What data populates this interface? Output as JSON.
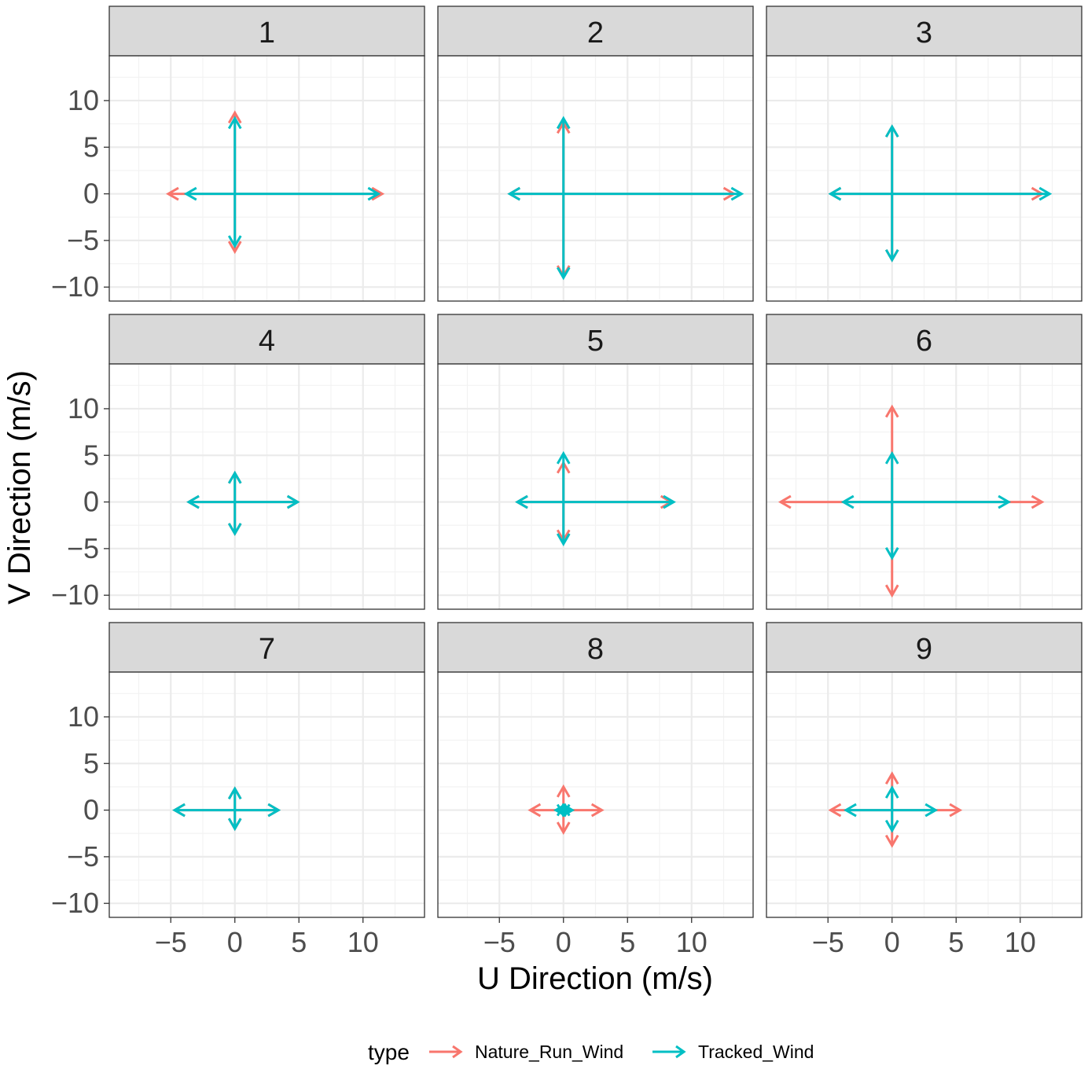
{
  "chart_data": {
    "type": "vector",
    "xlabel": "U Direction (m/s)",
    "ylabel": "V Direction (m/s)",
    "xlim": [
      -9.8,
      14.8
    ],
    "ylim": [
      -11.5,
      14.8
    ],
    "x_ticks": [
      -5,
      0,
      5,
      10
    ],
    "x_tick_labels": [
      "−5",
      "0",
      "5",
      "10"
    ],
    "y_ticks": [
      10,
      5,
      0,
      -5,
      -10
    ],
    "y_tick_labels": [
      "10",
      "5",
      "0",
      "−5",
      "−10"
    ],
    "grid": true,
    "legend": {
      "title": "type",
      "placement": "bottom",
      "entries": [
        {
          "name": "Nature_Run_Wind",
          "color": "#F8766D"
        },
        {
          "name": "Tracked_Wind",
          "color": "#00BFC4"
        }
      ]
    },
    "facets": [
      {
        "label": "1",
        "Nature_Run_Wind": {
          "u_pos": 11.5,
          "u_neg": -5.2,
          "v_pos": 8.7,
          "v_neg": -6.2
        },
        "Tracked_Wind": {
          "u_pos": 11.2,
          "u_neg": -3.8,
          "v_pos": 8.1,
          "v_neg": -5.6
        }
      },
      {
        "label": "2",
        "Nature_Run_Wind": {
          "u_pos": 13.3,
          "u_neg": -4.2,
          "v_pos": 7.6,
          "v_neg": -8.8
        },
        "Tracked_Wind": {
          "u_pos": 13.9,
          "u_neg": -4.2,
          "v_pos": 8.1,
          "v_neg": -9.0
        }
      },
      {
        "label": "3",
        "Nature_Run_Wind": {
          "u_pos": 11.7,
          "u_neg": -4.8,
          "v_pos": 7.2,
          "v_neg": -7.1
        },
        "Tracked_Wind": {
          "u_pos": 12.3,
          "u_neg": -4.8,
          "v_pos": 7.2,
          "v_neg": -7.1
        }
      },
      {
        "label": "4",
        "Nature_Run_Wind": {
          "u_pos": 4.9,
          "u_neg": -3.6,
          "v_pos": 3.1,
          "v_neg": -3.4
        },
        "Tracked_Wind": {
          "u_pos": 4.9,
          "u_neg": -3.6,
          "v_pos": 3.1,
          "v_neg": -3.4
        }
      },
      {
        "label": "5",
        "Nature_Run_Wind": {
          "u_pos": 8.4,
          "u_neg": -3.6,
          "v_pos": 4.2,
          "v_neg": -4.1
        },
        "Tracked_Wind": {
          "u_pos": 8.6,
          "u_neg": -3.6,
          "v_pos": 5.2,
          "v_neg": -4.5
        }
      },
      {
        "label": "6",
        "Nature_Run_Wind": {
          "u_pos": 11.7,
          "u_neg": -8.7,
          "v_pos": 10.2,
          "v_neg": -10.0
        },
        "Tracked_Wind": {
          "u_pos": 9.1,
          "u_neg": -3.8,
          "v_pos": 5.2,
          "v_neg": -6.0
        }
      },
      {
        "label": "7",
        "Nature_Run_Wind": {
          "u_pos": 3.4,
          "u_neg": -4.7,
          "v_pos": 2.3,
          "v_neg": -2.0
        },
        "Tracked_Wind": {
          "u_pos": 3.4,
          "u_neg": -4.7,
          "v_pos": 2.3,
          "v_neg": -2.0
        }
      },
      {
        "label": "8",
        "Nature_Run_Wind": {
          "u_pos": 3.0,
          "u_neg": -2.6,
          "v_pos": 2.5,
          "v_neg": -2.4
        },
        "Tracked_Wind": {
          "u_pos": 0.7,
          "u_neg": -0.6,
          "v_pos": 0.5,
          "v_neg": -0.5
        }
      },
      {
        "label": "9",
        "Nature_Run_Wind": {
          "u_pos": 5.3,
          "u_neg": -4.8,
          "v_pos": 3.9,
          "v_neg": -3.8
        },
        "Tracked_Wind": {
          "u_pos": 3.4,
          "u_neg": -3.6,
          "v_pos": 2.4,
          "v_neg": -2.2
        }
      }
    ]
  }
}
